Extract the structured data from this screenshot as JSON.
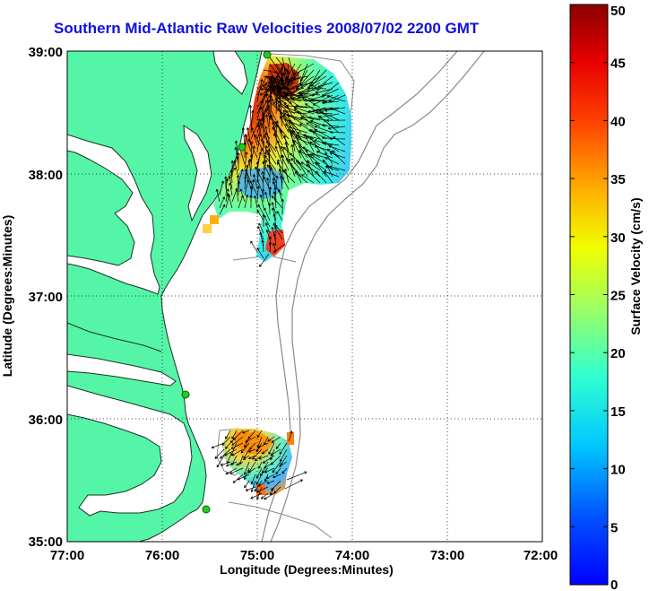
{
  "title": "Southern Mid-Atlantic Raw Velocities 2008/07/02 2200 GMT",
  "map": {
    "xlabel": "Longitude (Degrees:Minutes)",
    "ylabel": "Latitude (Degrees:Minutes)",
    "lon_range": [
      -77,
      -72
    ],
    "lat_range": [
      35,
      39
    ],
    "x_ticks": [
      "77:00",
      "76:00",
      "75:00",
      "74:00",
      "73:00",
      "72:00"
    ],
    "y_ticks": [
      "39:00",
      "38:00",
      "37:00",
      "36:00",
      "35:00"
    ],
    "land_color": "#55f5a8",
    "grid": "dotted",
    "radar_sites": [
      {
        "lon": -75.1,
        "lat": 38.97
      },
      {
        "lon": -75.15,
        "lat": 38.22
      },
      {
        "lon": -75.65,
        "lat": 36.18
      },
      {
        "lon": -75.5,
        "lat": 35.27
      }
    ]
  },
  "colorbar": {
    "label": "Surface Velocity (cm/s)",
    "min": 0,
    "max": 50,
    "ticks": [
      "0",
      "5",
      "10",
      "15",
      "20",
      "25",
      "30",
      "35",
      "40",
      "45",
      "50"
    ]
  },
  "velocity_field": {
    "north_region": {
      "lon": [
        -75.7,
        -74.0
      ],
      "lat": [
        37.55,
        38.95
      ],
      "peak_cm_s": 50
    },
    "south_region": {
      "lon": [
        -75.55,
        -74.7
      ],
      "lat": [
        35.35,
        35.95
      ],
      "peak_cm_s": 38
    }
  }
}
